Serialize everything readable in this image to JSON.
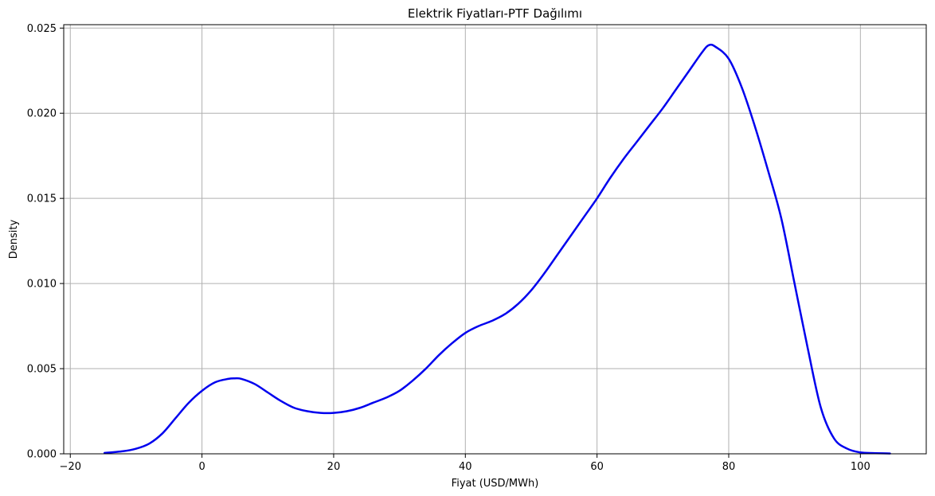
{
  "chart_data": {
    "type": "line",
    "title": "Elektrik Fiyatları-PTF Dağılımı",
    "xlabel": "Fiyat (USD/MWh)",
    "ylabel": "Density",
    "xlim": [
      -21,
      110
    ],
    "ylim": [
      0,
      0.0252
    ],
    "xticks": [
      -20,
      0,
      20,
      40,
      60,
      80,
      100
    ],
    "xtick_labels": [
      "−20",
      "0",
      "20",
      "40",
      "60",
      "80",
      "100"
    ],
    "yticks": [
      0,
      0.005,
      0.01,
      0.015,
      0.02,
      0.025
    ],
    "ytick_labels": [
      "0.000",
      "0.005",
      "0.010",
      "0.015",
      "0.020",
      "0.025"
    ],
    "grid": true,
    "series": [
      {
        "color": "#0000ee",
        "x": [
          -14.8,
          -12,
          -10,
          -8,
          -6,
          -4,
          -2,
          0,
          2,
          4,
          5,
          6,
          8,
          10,
          12,
          14,
          16,
          18,
          20,
          22,
          24,
          26,
          28,
          30,
          32,
          34,
          36,
          38,
          40,
          42,
          44,
          46,
          48,
          50,
          52,
          54,
          56,
          58,
          60,
          62,
          64,
          66,
          68,
          70,
          72,
          74,
          76,
          77,
          78,
          80,
          82,
          84,
          86,
          88,
          90,
          92,
          94,
          96,
          98,
          100,
          102,
          104.5
        ],
        "y": [
          5e-05,
          0.00015,
          0.0003,
          0.0006,
          0.0012,
          0.0021,
          0.003,
          0.0037,
          0.0042,
          0.0044,
          0.00443,
          0.0044,
          0.0041,
          0.0036,
          0.0031,
          0.0027,
          0.0025,
          0.0024,
          0.0024,
          0.0025,
          0.0027,
          0.003,
          0.0033,
          0.0037,
          0.0043,
          0.005,
          0.0058,
          0.0065,
          0.0071,
          0.0075,
          0.0078,
          0.0082,
          0.0088,
          0.0096,
          0.0106,
          0.0117,
          0.0128,
          0.0139,
          0.015,
          0.0162,
          0.0173,
          0.0183,
          0.0193,
          0.0203,
          0.0214,
          0.0225,
          0.0236,
          0.024,
          0.0239,
          0.0232,
          0.0215,
          0.0192,
          0.0166,
          0.0138,
          0.01,
          0.0062,
          0.0027,
          0.0009,
          0.0003,
          8e-05,
          4e-05,
          2e-05
        ]
      }
    ]
  }
}
